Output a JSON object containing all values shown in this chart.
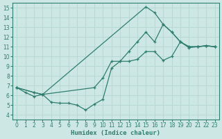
{
  "xlabel": "Humidex (Indice chaleur)",
  "xlim": [
    -0.5,
    23.5
  ],
  "ylim": [
    3.5,
    15.5
  ],
  "xticks": [
    0,
    1,
    2,
    3,
    4,
    5,
    6,
    7,
    8,
    9,
    10,
    11,
    12,
    13,
    14,
    15,
    16,
    17,
    18,
    19,
    20,
    21,
    22,
    23
  ],
  "yticks": [
    4,
    5,
    6,
    7,
    8,
    9,
    10,
    11,
    12,
    13,
    14,
    15
  ],
  "bg_color": "#cde8e4",
  "line_color": "#2e7d6e",
  "grid_color": "#b8d8d4",
  "line1_x": [
    0,
    1,
    2,
    3,
    4,
    5,
    6,
    7,
    8,
    9,
    10,
    11,
    12,
    13,
    14,
    15,
    16,
    17,
    18,
    19,
    20,
    21,
    22,
    23
  ],
  "line1_y": [
    6.8,
    6.3,
    5.9,
    6.1,
    5.3,
    5.2,
    5.2,
    5.0,
    4.5,
    5.1,
    5.6,
    8.8,
    9.5,
    9.5,
    9.7,
    10.5,
    10.5,
    9.6,
    10.0,
    11.5,
    10.9,
    11.0,
    11.1,
    11.0
  ],
  "line2_x": [
    0,
    2,
    3,
    15,
    16,
    17,
    18,
    19,
    20,
    21,
    22,
    23
  ],
  "line2_y": [
    6.8,
    6.3,
    6.1,
    15.1,
    14.5,
    13.3,
    12.5,
    11.5,
    11.0,
    11.0,
    11.1,
    11.0
  ],
  "line3_x": [
    0,
    2,
    3,
    9,
    10,
    11,
    12,
    13,
    14,
    15,
    16,
    17,
    18,
    19,
    20,
    21,
    22,
    23
  ],
  "line3_y": [
    6.8,
    6.3,
    6.1,
    6.8,
    7.8,
    9.5,
    9.5,
    10.5,
    11.5,
    12.5,
    11.5,
    13.3,
    12.5,
    11.5,
    11.0,
    11.0,
    11.1,
    11.0
  ]
}
